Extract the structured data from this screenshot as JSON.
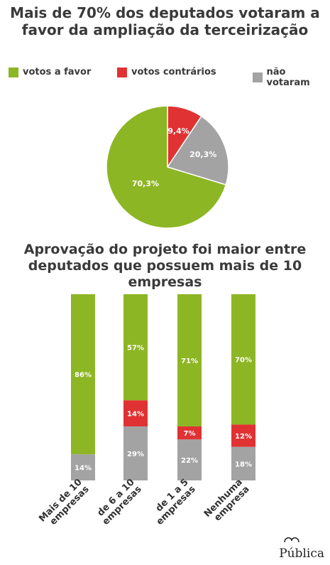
{
  "chart_data": [
    {
      "type": "pie",
      "title": "Mais de 70% dos deputados votaram a favor da ampliação da terceirização",
      "legend": [
        "votos a favor",
        "votos contrários",
        "não votaram"
      ],
      "legend_position": "top",
      "slices": [
        {
          "name": "votos a favor",
          "value": 70.3,
          "label": "70,3%",
          "color": "#8db624"
        },
        {
          "name": "votos contrários",
          "value": 9.4,
          "label": "9,4%",
          "color": "#e03232"
        },
        {
          "name": "não votaram",
          "value": 20.3,
          "label": "20,3%",
          "color": "#a3a3a3"
        }
      ]
    },
    {
      "type": "bar",
      "stacked": true,
      "percent": true,
      "title": "Aprovação do projeto foi maior entre deputados que possuem mais de 10 empresas",
      "categories": [
        "Mais de 10 empresas",
        "de 6 a 10 empresas",
        "de 1 a 5 empresas",
        "Nenhuma empresa"
      ],
      "series": [
        {
          "name": "votos a favor",
          "values": [
            86,
            57,
            71,
            70
          ],
          "labels": [
            "86%",
            "57%",
            "71%",
            "70%"
          ],
          "color": "#8db624"
        },
        {
          "name": "votos contrários",
          "values": [
            0,
            14,
            7,
            12
          ],
          "labels": [
            "",
            "14%",
            "7%",
            "12%"
          ],
          "color": "#e03232"
        },
        {
          "name": "não votaram",
          "values": [
            14,
            29,
            22,
            18
          ],
          "labels": [
            "14%",
            "29%",
            "22%",
            "18%"
          ],
          "color": "#a3a3a3"
        }
      ]
    }
  ],
  "brand": "Pública"
}
